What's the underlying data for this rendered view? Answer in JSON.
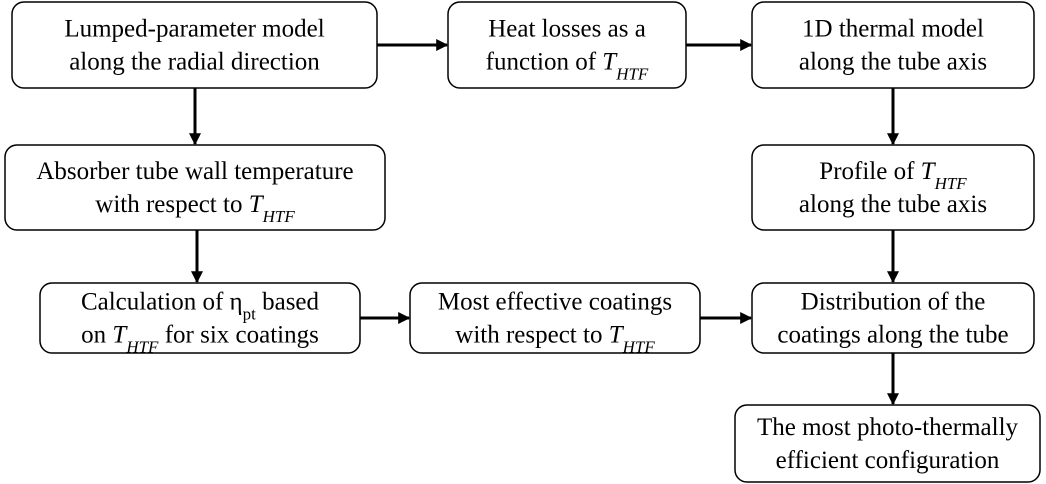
{
  "nodes": [
    {
      "lines": [
        [
          {
            "text": "Lumped-parameter model"
          }
        ],
        [
          {
            "text": "along the radial direction"
          }
        ]
      ]
    },
    {
      "lines": [
        [
          {
            "text": "Heat losses as a"
          }
        ],
        [
          {
            "text": "function of "
          },
          {
            "text": "T",
            "italic": true
          },
          {
            "text": "HTF",
            "italic": true,
            "sub": true
          }
        ]
      ]
    },
    {
      "lines": [
        [
          {
            "text": "1D thermal model"
          }
        ],
        [
          {
            "text": "along the tube axis"
          }
        ]
      ]
    },
    {
      "lines": [
        [
          {
            "text": "Absorber tube wall temperature"
          }
        ],
        [
          {
            "text": "with respect to "
          },
          {
            "text": "T",
            "italic": true
          },
          {
            "text": "HTF",
            "italic": true,
            "sub": true
          }
        ]
      ]
    },
    {
      "lines": [
        [
          {
            "text": "Profile of "
          },
          {
            "text": "T",
            "italic": true
          },
          {
            "text": "HTF",
            "italic": true,
            "sub": true
          }
        ],
        [
          {
            "text": "along the tube axis"
          }
        ]
      ]
    },
    {
      "lines": [
        [
          {
            "text": "Calculation of η"
          },
          {
            "text": "pt",
            "sub": true
          },
          {
            "text": " based"
          }
        ],
        [
          {
            "text": "on "
          },
          {
            "text": "T",
            "italic": true
          },
          {
            "text": "HTF",
            "italic": true,
            "sub": true
          },
          {
            "text": " for six coatings"
          }
        ]
      ]
    },
    {
      "lines": [
        [
          {
            "text": "Most effective coatings"
          }
        ],
        [
          {
            "text": "with respect to "
          },
          {
            "text": "T",
            "italic": true
          },
          {
            "text": "HTF",
            "italic": true,
            "sub": true
          }
        ]
      ]
    },
    {
      "lines": [
        [
          {
            "text": "Distribution of the"
          }
        ],
        [
          {
            "text": "coatings along the tube"
          }
        ]
      ]
    },
    {
      "lines": [
        [
          {
            "text": "The most photo-thermally"
          }
        ],
        [
          {
            "text": "efficient configuration"
          }
        ]
      ]
    }
  ]
}
